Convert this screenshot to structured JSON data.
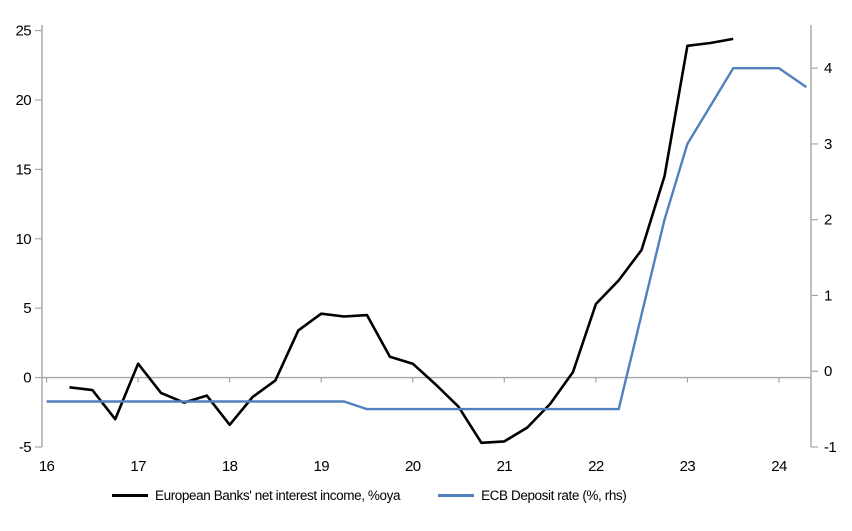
{
  "chart_data": {
    "type": "line",
    "title": "",
    "grid": "horizontal-zero-line-only",
    "legend_position": "bottom",
    "background": "#ffffff",
    "axis_color": "#a6a6a6",
    "x_axis": {
      "label": "",
      "ticks": [
        16,
        17,
        18,
        19,
        20,
        21,
        22,
        23,
        24
      ],
      "min": 15.95,
      "max": 24.35,
      "unit": "year (2016-2024)"
    },
    "left_axis": {
      "label": "",
      "ticks": [
        25,
        20,
        15,
        10,
        5,
        0,
        -5
      ],
      "min": -5,
      "max": 25.4
    },
    "right_axis": {
      "label": "",
      "ticks": [
        4,
        3,
        2,
        1,
        0,
        -1
      ],
      "min": -1,
      "max": 4.57
    },
    "series": [
      {
        "name": "European Banks' net interest income, %oya",
        "axis": "left",
        "color": "#000000",
        "stroke_width": 2.6,
        "points": [
          [
            16.25,
            -0.7
          ],
          [
            16.5,
            -0.9
          ],
          [
            16.75,
            -3.0
          ],
          [
            17.0,
            1.0
          ],
          [
            17.25,
            -1.1
          ],
          [
            17.5,
            -1.8
          ],
          [
            17.75,
            -1.3
          ],
          [
            18.0,
            -3.4
          ],
          [
            18.25,
            -1.4
          ],
          [
            18.5,
            -0.2
          ],
          [
            18.75,
            3.4
          ],
          [
            19.0,
            4.6
          ],
          [
            19.25,
            4.4
          ],
          [
            19.5,
            4.5
          ],
          [
            19.75,
            1.5
          ],
          [
            20.0,
            1.0
          ],
          [
            20.25,
            -0.5
          ],
          [
            20.5,
            -2.1
          ],
          [
            20.75,
            -4.7
          ],
          [
            21.0,
            -4.6
          ],
          [
            21.25,
            -3.6
          ],
          [
            21.5,
            -1.9
          ],
          [
            21.75,
            0.4
          ],
          [
            22.0,
            5.3
          ],
          [
            22.25,
            7.0
          ],
          [
            22.5,
            9.2
          ],
          [
            22.75,
            14.5
          ],
          [
            23.0,
            23.9
          ],
          [
            23.25,
            24.1
          ],
          [
            23.5,
            24.4
          ]
        ]
      },
      {
        "name": "ECB Deposit rate (%, rhs)",
        "axis": "right",
        "color": "#4f81bd",
        "stroke_width": 2.4,
        "points": [
          [
            16.0,
            -0.4
          ],
          [
            16.25,
            -0.4
          ],
          [
            16.5,
            -0.4
          ],
          [
            16.75,
            -0.4
          ],
          [
            17.0,
            -0.4
          ],
          [
            17.25,
            -0.4
          ],
          [
            17.5,
            -0.4
          ],
          [
            17.75,
            -0.4
          ],
          [
            18.0,
            -0.4
          ],
          [
            18.25,
            -0.4
          ],
          [
            18.5,
            -0.4
          ],
          [
            18.75,
            -0.4
          ],
          [
            19.0,
            -0.4
          ],
          [
            19.25,
            -0.4
          ],
          [
            19.5,
            -0.5
          ],
          [
            19.75,
            -0.5
          ],
          [
            20.0,
            -0.5
          ],
          [
            20.25,
            -0.5
          ],
          [
            20.5,
            -0.5
          ],
          [
            20.75,
            -0.5
          ],
          [
            21.0,
            -0.5
          ],
          [
            21.25,
            -0.5
          ],
          [
            21.5,
            -0.5
          ],
          [
            21.75,
            -0.5
          ],
          [
            22.0,
            -0.5
          ],
          [
            22.25,
            -0.5
          ],
          [
            22.5,
            0.75
          ],
          [
            22.75,
            2.0
          ],
          [
            23.0,
            3.0
          ],
          [
            23.25,
            3.5
          ],
          [
            23.5,
            4.0
          ],
          [
            23.75,
            4.0
          ],
          [
            24.0,
            4.0
          ],
          [
            24.3,
            3.75
          ]
        ]
      }
    ]
  }
}
